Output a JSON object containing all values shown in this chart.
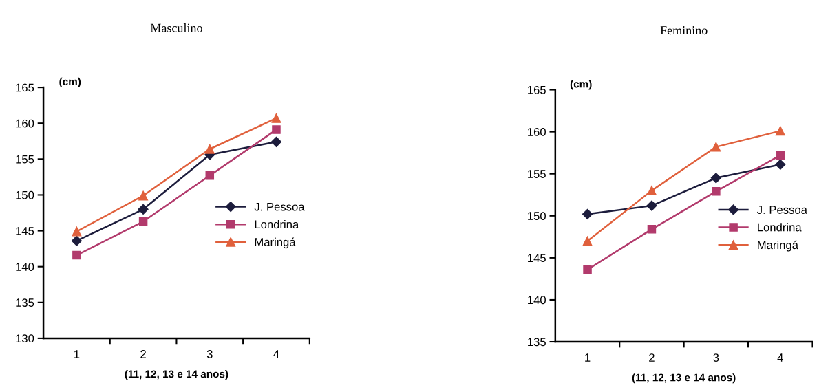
{
  "chart_data": [
    {
      "type": "line",
      "title": "Masculino",
      "ylabel": "(cm)",
      "xlabel": "(11, 12, 13 e 14 anos)",
      "categories": [
        "1",
        "2",
        "3",
        "4"
      ],
      "ylim": [
        130,
        165
      ],
      "yticks": [
        130,
        135,
        140,
        145,
        150,
        155,
        160,
        165
      ],
      "grid": false,
      "legend": "right",
      "series": [
        {
          "name": "J. Pessoa",
          "color": "#1c1c3c",
          "marker": "diamond",
          "values": [
            143.6,
            148.0,
            155.6,
            157.4
          ]
        },
        {
          "name": "Londrina",
          "color": "#b23a6c",
          "marker": "square",
          "values": [
            141.6,
            146.3,
            152.7,
            159.1
          ]
        },
        {
          "name": "Maringá",
          "color": "#e0603c",
          "marker": "triangle",
          "values": [
            144.9,
            149.9,
            156.4,
            160.7
          ]
        }
      ]
    },
    {
      "type": "line",
      "title": "Feminino",
      "ylabel": "(cm)",
      "xlabel": "(11, 12, 13 e 14 anos)",
      "categories": [
        "1",
        "2",
        "3",
        "4"
      ],
      "ylim": [
        135,
        165
      ],
      "yticks": [
        135,
        140,
        145,
        150,
        155,
        160,
        165
      ],
      "grid": false,
      "legend": "right",
      "series": [
        {
          "name": "J. Pessoa",
          "color": "#1c1c3c",
          "marker": "diamond",
          "values": [
            150.2,
            151.2,
            154.5,
            156.1
          ]
        },
        {
          "name": "Londrina",
          "color": "#b23a6c",
          "marker": "square",
          "values": [
            143.6,
            148.4,
            152.9,
            157.2
          ]
        },
        {
          "name": "Maringá",
          "color": "#e0603c",
          "marker": "triangle",
          "values": [
            147.0,
            153.0,
            158.2,
            160.1
          ]
        }
      ]
    }
  ]
}
